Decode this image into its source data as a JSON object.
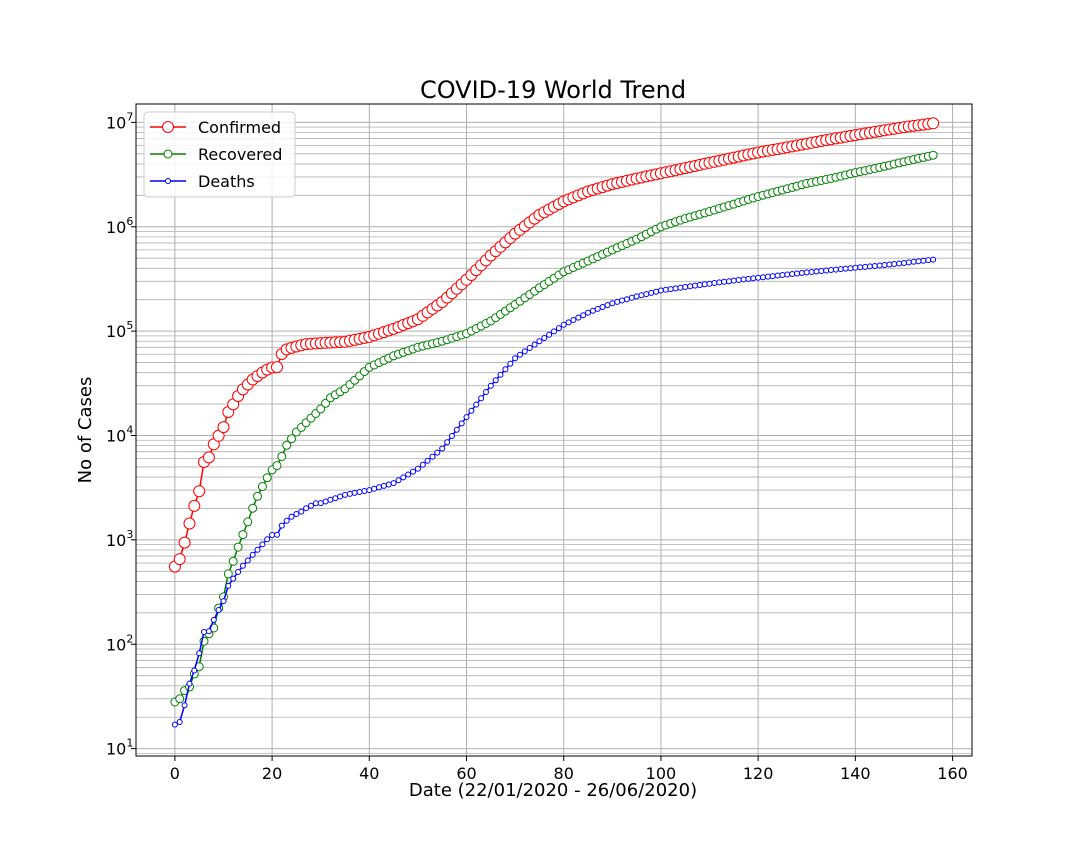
{
  "chart_data": {
    "type": "line",
    "title": "COVID-19 World Trend",
    "xlabel": "Date (22/01/2020 - 26/06/2020)",
    "ylabel": "No of Cases",
    "xlim": [
      -8,
      164
    ],
    "ylim": [
      8.5,
      15000000
    ],
    "yscale": "log",
    "grid": true,
    "legend_position": "top-left",
    "x_ticks": [
      0,
      20,
      40,
      60,
      80,
      100,
      120,
      140,
      160
    ],
    "x_tick_labels": [
      "0",
      "20",
      "40",
      "60",
      "80",
      "100",
      "120",
      "140",
      "160"
    ],
    "y_ticks": [
      10,
      100,
      1000,
      10000,
      100000,
      1000000,
      10000000
    ],
    "y_tick_exponents": [
      "1",
      "2",
      "3",
      "4",
      "5",
      "6",
      "7"
    ],
    "y_tick_base": "10",
    "x_days": 157,
    "series": [
      {
        "name": "Confirmed",
        "color": "#ff0000",
        "marker_size": "large",
        "anchors": [
          [
            0,
            555
          ],
          [
            1,
            654
          ],
          [
            2,
            941
          ],
          [
            3,
            1434
          ],
          [
            4,
            2118
          ],
          [
            5,
            2927
          ],
          [
            6,
            5578
          ],
          [
            7,
            6166
          ],
          [
            8,
            8234
          ],
          [
            9,
            9927
          ],
          [
            10,
            12038
          ],
          [
            11,
            16787
          ],
          [
            12,
            19881
          ],
          [
            13,
            23892
          ],
          [
            14,
            27635
          ],
          [
            15,
            30794
          ],
          [
            16,
            34391
          ],
          [
            17,
            37120
          ],
          [
            18,
            40150
          ],
          [
            19,
            42762
          ],
          [
            20,
            44802
          ],
          [
            21,
            45221
          ],
          [
            22,
            60368
          ],
          [
            23,
            66885
          ],
          [
            24,
            69030
          ],
          [
            25,
            71224
          ],
          [
            26,
            73258
          ],
          [
            27,
            75136
          ],
          [
            28,
            75639
          ],
          [
            30,
            76841
          ],
          [
            35,
            79000
          ],
          [
            40,
            88000
          ],
          [
            45,
            105000
          ],
          [
            50,
            130000
          ],
          [
            55,
            190000
          ],
          [
            60,
            310000
          ],
          [
            65,
            530000
          ],
          [
            70,
            860000
          ],
          [
            75,
            1300000
          ],
          [
            80,
            1750000
          ],
          [
            85,
            2180000
          ],
          [
            90,
            2560000
          ],
          [
            95,
            2900000
          ],
          [
            100,
            3250000
          ],
          [
            105,
            3650000
          ],
          [
            110,
            4100000
          ],
          [
            115,
            4600000
          ],
          [
            120,
            5150000
          ],
          [
            125,
            5650000
          ],
          [
            130,
            6250000
          ],
          [
            135,
            6900000
          ],
          [
            140,
            7550000
          ],
          [
            145,
            8250000
          ],
          [
            150,
            9000000
          ],
          [
            156,
            9800000
          ]
        ]
      },
      {
        "name": "Recovered",
        "color": "#008000",
        "marker_size": "medium",
        "anchors": [
          [
            0,
            28
          ],
          [
            1,
            30
          ],
          [
            2,
            36
          ],
          [
            3,
            39
          ],
          [
            4,
            52
          ],
          [
            5,
            61
          ],
          [
            6,
            107
          ],
          [
            7,
            126
          ],
          [
            8,
            143
          ],
          [
            9,
            222
          ],
          [
            10,
            284
          ],
          [
            11,
            472
          ],
          [
            12,
            623
          ],
          [
            13,
            852
          ],
          [
            14,
            1124
          ],
          [
            15,
            1487
          ],
          [
            16,
            2011
          ],
          [
            17,
            2616
          ],
          [
            18,
            3244
          ],
          [
            19,
            3946
          ],
          [
            20,
            4683
          ],
          [
            21,
            5150
          ],
          [
            22,
            6295
          ],
          [
            23,
            8058
          ],
          [
            25,
            10800
          ],
          [
            30,
            18000
          ],
          [
            32,
            23000
          ],
          [
            35,
            28000
          ],
          [
            40,
            45000
          ],
          [
            45,
            58000
          ],
          [
            50,
            70000
          ],
          [
            55,
            80000
          ],
          [
            60,
            95000
          ],
          [
            65,
            125000
          ],
          [
            70,
            180000
          ],
          [
            75,
            260000
          ],
          [
            80,
            370000
          ],
          [
            85,
            470000
          ],
          [
            90,
            600000
          ],
          [
            95,
            760000
          ],
          [
            100,
            1000000
          ],
          [
            105,
            1200000
          ],
          [
            110,
            1400000
          ],
          [
            115,
            1650000
          ],
          [
            120,
            1950000
          ],
          [
            125,
            2250000
          ],
          [
            130,
            2600000
          ],
          [
            135,
            2900000
          ],
          [
            140,
            3300000
          ],
          [
            145,
            3700000
          ],
          [
            150,
            4200000
          ],
          [
            156,
            4850000
          ]
        ]
      },
      {
        "name": "Deaths",
        "color": "#0000ff",
        "marker_size": "small",
        "anchors": [
          [
            0,
            17
          ],
          [
            1,
            18
          ],
          [
            2,
            26
          ],
          [
            3,
            42
          ],
          [
            4,
            56
          ],
          [
            5,
            82
          ],
          [
            6,
            131
          ],
          [
            7,
            133
          ],
          [
            8,
            171
          ],
          [
            9,
            213
          ],
          [
            10,
            259
          ],
          [
            11,
            362
          ],
          [
            12,
            426
          ],
          [
            13,
            492
          ],
          [
            14,
            564
          ],
          [
            15,
            634
          ],
          [
            16,
            719
          ],
          [
            17,
            806
          ],
          [
            18,
            906
          ],
          [
            19,
            1013
          ],
          [
            20,
            1113
          ],
          [
            21,
            1118
          ],
          [
            22,
            1371
          ],
          [
            23,
            1523
          ],
          [
            24,
            1666
          ],
          [
            25,
            1770
          ],
          [
            26,
            1868
          ],
          [
            27,
            2007
          ],
          [
            28,
            2122
          ],
          [
            29,
            2247
          ],
          [
            30,
            2251
          ],
          [
            35,
            2700
          ],
          [
            40,
            3000
          ],
          [
            45,
            3500
          ],
          [
            50,
            4800
          ],
          [
            55,
            7500
          ],
          [
            60,
            15000
          ],
          [
            65,
            30000
          ],
          [
            70,
            55000
          ],
          [
            75,
            80000
          ],
          [
            80,
            115000
          ],
          [
            85,
            150000
          ],
          [
            90,
            185000
          ],
          [
            95,
            215000
          ],
          [
            100,
            245000
          ],
          [
            105,
            265000
          ],
          [
            110,
            285000
          ],
          [
            115,
            305000
          ],
          [
            120,
            325000
          ],
          [
            125,
            345000
          ],
          [
            130,
            365000
          ],
          [
            135,
            385000
          ],
          [
            140,
            405000
          ],
          [
            145,
            425000
          ],
          [
            150,
            450000
          ],
          [
            156,
            485000
          ]
        ]
      }
    ]
  }
}
